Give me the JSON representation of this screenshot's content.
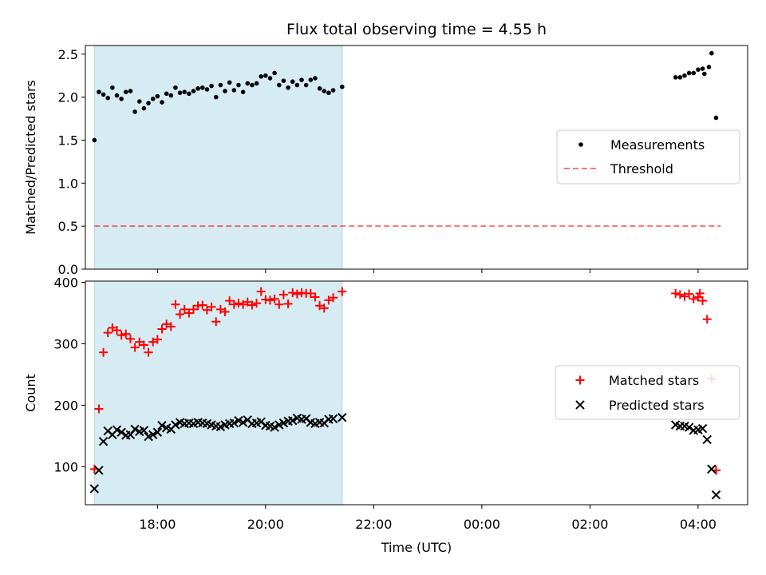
{
  "title": "Flux total observing time = 4.55 h",
  "colors": {
    "highlight": "#add8e6",
    "measurement": "#000000",
    "threshold": "#ff0000",
    "matched": "#ff0000",
    "predicted": "#000000"
  },
  "chart_data": [
    {
      "type": "scatter",
      "xlabel": "",
      "ylabel": "Matched/Predicted stars",
      "ylim": [
        0.0,
        2.6
      ],
      "yticks": [
        "0.0",
        "0.5",
        "1.0",
        "1.5",
        "2.0",
        "2.5"
      ],
      "x_axis": "time of day (UTC)",
      "xlim": [
        "16:40",
        "04:55"
      ],
      "xticks": [
        "18:00",
        "20:00",
        "22:00",
        "00:00",
        "02:00",
        "04:00"
      ],
      "shaded_span": [
        "16:50",
        "21:25"
      ],
      "legend": "center-right",
      "series": [
        {
          "name": "Measurements",
          "marker": "dot",
          "points": [
            [
              "16:50",
              1.5
            ],
            [
              "16:55",
              2.06
            ],
            [
              "17:00",
              2.03
            ],
            [
              "17:05",
              1.99
            ],
            [
              "17:10",
              2.11
            ],
            [
              "17:15",
              2.02
            ],
            [
              "17:20",
              1.98
            ],
            [
              "17:25",
              2.06
            ],
            [
              "17:30",
              2.07
            ],
            [
              "17:35",
              1.83
            ],
            [
              "17:40",
              1.95
            ],
            [
              "17:45",
              1.87
            ],
            [
              "17:50",
              1.93
            ],
            [
              "17:55",
              1.98
            ],
            [
              "18:00",
              2.01
            ],
            [
              "18:05",
              1.94
            ],
            [
              "18:10",
              2.04
            ],
            [
              "18:15",
              2.02
            ],
            [
              "18:20",
              2.11
            ],
            [
              "18:25",
              2.05
            ],
            [
              "18:30",
              2.06
            ],
            [
              "18:35",
              2.04
            ],
            [
              "18:40",
              2.07
            ],
            [
              "18:45",
              2.1
            ],
            [
              "18:50",
              2.11
            ],
            [
              "18:55",
              2.09
            ],
            [
              "19:00",
              2.13
            ],
            [
              "19:05",
              2.0
            ],
            [
              "19:10",
              2.14
            ],
            [
              "19:15",
              2.07
            ],
            [
              "19:20",
              2.17
            ],
            [
              "19:25",
              2.08
            ],
            [
              "19:30",
              2.14
            ],
            [
              "19:35",
              2.06
            ],
            [
              "19:40",
              2.16
            ],
            [
              "19:45",
              2.14
            ],
            [
              "19:50",
              2.16
            ],
            [
              "19:55",
              2.24
            ],
            [
              "20:00",
              2.25
            ],
            [
              "20:05",
              2.22
            ],
            [
              "20:10",
              2.28
            ],
            [
              "20:15",
              2.14
            ],
            [
              "20:20",
              2.19
            ],
            [
              "20:25",
              2.11
            ],
            [
              "20:30",
              2.18
            ],
            [
              "20:35",
              2.14
            ],
            [
              "20:40",
              2.2
            ],
            [
              "20:45",
              2.14
            ],
            [
              "20:50",
              2.2
            ],
            [
              "20:55",
              2.22
            ],
            [
              "21:00",
              2.1
            ],
            [
              "21:05",
              2.07
            ],
            [
              "21:10",
              2.05
            ],
            [
              "21:15",
              2.08
            ],
            [
              "21:25",
              2.12
            ],
            [
              "03:35",
              2.23
            ],
            [
              "03:40",
              2.23
            ],
            [
              "03:45",
              2.25
            ],
            [
              "03:50",
              2.28
            ],
            [
              "03:55",
              2.28
            ],
            [
              "04:00",
              2.32
            ],
            [
              "04:05",
              2.33
            ],
            [
              "04:07",
              2.27
            ],
            [
              "04:12",
              2.35
            ],
            [
              "04:15",
              2.51
            ],
            [
              "04:20",
              1.76
            ]
          ]
        },
        {
          "name": "Threshold",
          "style": "dashed-line",
          "points": [
            [
              "16:50",
              0.5
            ],
            [
              "04:25",
              0.5
            ]
          ]
        }
      ]
    },
    {
      "type": "scatter",
      "xlabel": "Time (UTC)",
      "ylabel": "Count",
      "ylim": [
        38,
        402
      ],
      "yticks": [
        "100",
        "200",
        "300",
        "400"
      ],
      "x_axis": "time of day (UTC)",
      "xlim": [
        "16:40",
        "04:55"
      ],
      "xticks": [
        "18:00",
        "20:00",
        "22:00",
        "00:00",
        "02:00",
        "04:00"
      ],
      "shaded_span": [
        "16:50",
        "21:25"
      ],
      "legend": "center-right",
      "series": [
        {
          "name": "Matched stars",
          "marker": "plus",
          "points": [
            [
              "16:50",
              96
            ],
            [
              "16:55",
              194
            ],
            [
              "17:00",
              286
            ],
            [
              "17:05",
              318
            ],
            [
              "17:10",
              326
            ],
            [
              "17:15",
              322
            ],
            [
              "17:20",
              314
            ],
            [
              "17:25",
              316
            ],
            [
              "17:30",
              308
            ],
            [
              "17:35",
              294
            ],
            [
              "17:40",
              303
            ],
            [
              "17:45",
              298
            ],
            [
              "17:50",
              286
            ],
            [
              "17:55",
              303
            ],
            [
              "18:00",
              307
            ],
            [
              "18:05",
              324
            ],
            [
              "18:10",
              332
            ],
            [
              "18:15",
              328
            ],
            [
              "18:20",
              364
            ],
            [
              "18:25",
              348
            ],
            [
              "18:30",
              356
            ],
            [
              "18:35",
              350
            ],
            [
              "18:40",
              356
            ],
            [
              "18:45",
              362
            ],
            [
              "18:50",
              363
            ],
            [
              "18:55",
              355
            ],
            [
              "19:00",
              360
            ],
            [
              "19:05",
              336
            ],
            [
              "19:10",
              356
            ],
            [
              "19:15",
              352
            ],
            [
              "19:20",
              370
            ],
            [
              "19:25",
              364
            ],
            [
              "19:30",
              366
            ],
            [
              "19:35",
              364
            ],
            [
              "19:40",
              368
            ],
            [
              "19:45",
              363
            ],
            [
              "19:50",
              366
            ],
            [
              "19:55",
              385
            ],
            [
              "20:00",
              372
            ],
            [
              "20:05",
              371
            ],
            [
              "20:10",
              373
            ],
            [
              "20:15",
              364
            ],
            [
              "20:20",
              380
            ],
            [
              "20:25",
              365
            ],
            [
              "20:30",
              383
            ],
            [
              "20:35",
              381
            ],
            [
              "20:40",
              383
            ],
            [
              "20:45",
              382
            ],
            [
              "20:50",
              382
            ],
            [
              "20:55",
              376
            ],
            [
              "21:00",
              362
            ],
            [
              "21:05",
              358
            ],
            [
              "21:10",
              371
            ],
            [
              "21:15",
              375
            ],
            [
              "21:25",
              385
            ],
            [
              "03:35",
              382
            ],
            [
              "03:40",
              380
            ],
            [
              "03:45",
              377
            ],
            [
              "03:50",
              381
            ],
            [
              "03:55",
              373
            ],
            [
              "04:00",
              376
            ],
            [
              "04:02",
              382
            ],
            [
              "04:05",
              370
            ],
            [
              "04:10",
              340
            ],
            [
              "04:15",
              243
            ],
            [
              "04:20",
              94
            ]
          ]
        },
        {
          "name": "Predicted stars",
          "marker": "x",
          "points": [
            [
              "16:50",
              64
            ],
            [
              "16:55",
              94
            ],
            [
              "17:00",
              141
            ],
            [
              "17:05",
              158
            ],
            [
              "17:10",
              152
            ],
            [
              "17:15",
              160
            ],
            [
              "17:20",
              156
            ],
            [
              "17:25",
              151
            ],
            [
              "17:30",
              152
            ],
            [
              "17:35",
              161
            ],
            [
              "17:40",
              157
            ],
            [
              "17:45",
              159
            ],
            [
              "17:50",
              149
            ],
            [
              "17:55",
              152
            ],
            [
              "18:00",
              156
            ],
            [
              "18:05",
              167
            ],
            [
              "18:10",
              163
            ],
            [
              "18:15",
              161
            ],
            [
              "18:20",
              168
            ],
            [
              "18:25",
              172
            ],
            [
              "18:30",
              170
            ],
            [
              "18:35",
              171
            ],
            [
              "18:40",
              170
            ],
            [
              "18:45",
              172
            ],
            [
              "18:50",
              171
            ],
            [
              "18:55",
              170
            ],
            [
              "19:00",
              168
            ],
            [
              "19:05",
              166
            ],
            [
              "19:10",
              165
            ],
            [
              "19:15",
              168
            ],
            [
              "19:20",
              170
            ],
            [
              "19:25",
              171
            ],
            [
              "19:30",
              175
            ],
            [
              "19:35",
              172
            ],
            [
              "19:40",
              176
            ],
            [
              "19:45",
              170
            ],
            [
              "19:50",
              171
            ],
            [
              "19:55",
              173
            ],
            [
              "20:00",
              167
            ],
            [
              "20:05",
              166
            ],
            [
              "20:10",
              164
            ],
            [
              "20:15",
              168
            ],
            [
              "20:20",
              171
            ],
            [
              "20:25",
              174
            ],
            [
              "20:30",
              175
            ],
            [
              "20:35",
              179
            ],
            [
              "20:40",
              177
            ],
            [
              "20:45",
              178
            ],
            [
              "20:50",
              172
            ],
            [
              "20:55",
              170
            ],
            [
              "21:00",
              172
            ],
            [
              "21:05",
              171
            ],
            [
              "21:10",
              177
            ],
            [
              "21:15",
              178
            ],
            [
              "21:25",
              180
            ],
            [
              "03:35",
              168
            ],
            [
              "03:40",
              166
            ],
            [
              "03:45",
              166
            ],
            [
              "03:50",
              164
            ],
            [
              "03:55",
              159
            ],
            [
              "04:00",
              160
            ],
            [
              "04:05",
              162
            ],
            [
              "04:10",
              144
            ],
            [
              "04:15",
              96
            ],
            [
              "04:20",
              54
            ]
          ]
        }
      ]
    }
  ]
}
